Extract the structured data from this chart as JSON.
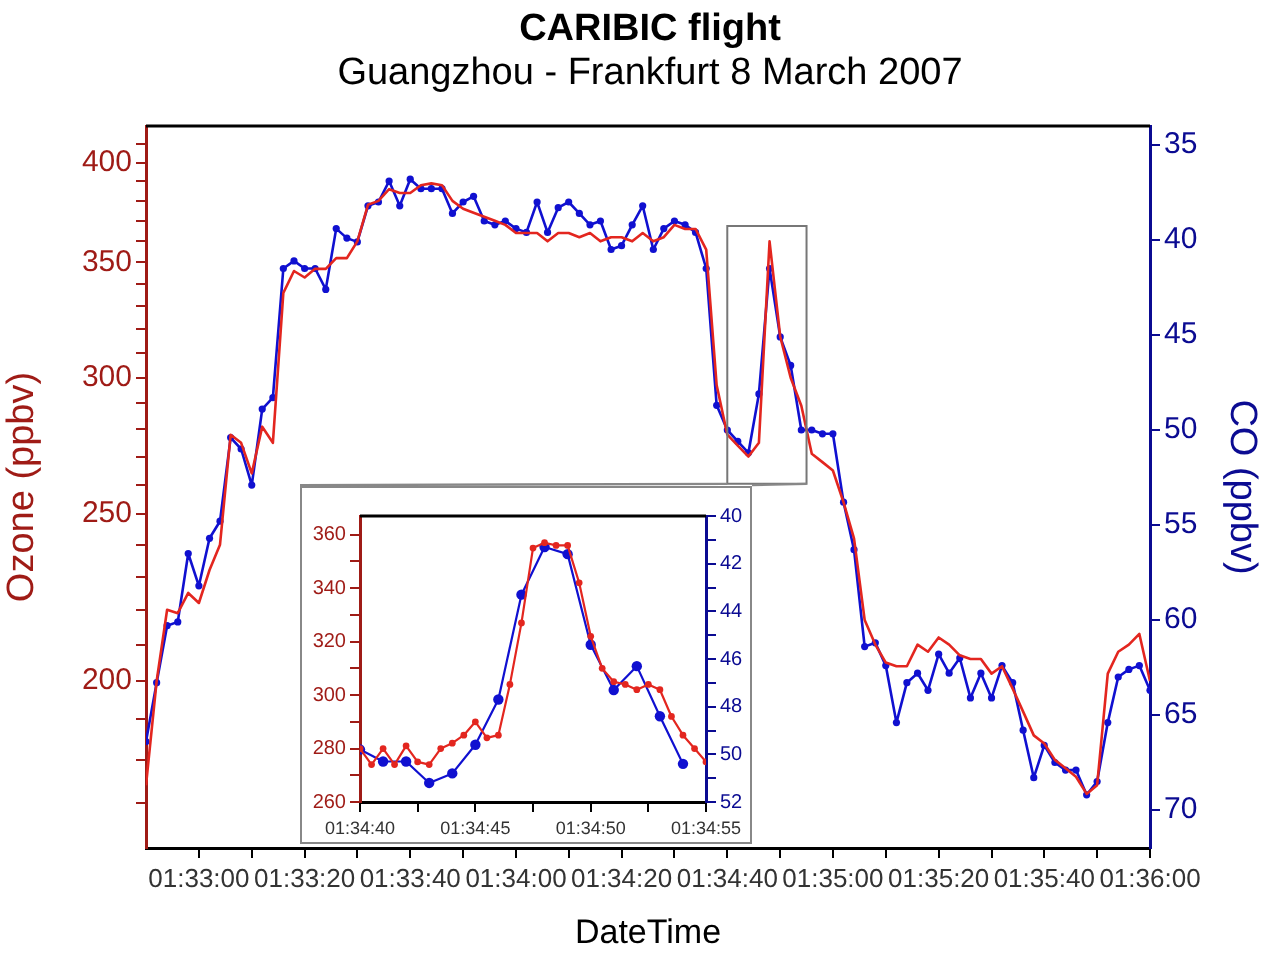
{
  "chart_data": [
    {
      "type": "line",
      "title": "CARIBIC flight",
      "subtitle": "Guangzhou - Frankfurt  8 March 2007",
      "xlabel": "DateTime",
      "ylabel": "Ozone (ppbv)",
      "y2label": "CO (ppbv)",
      "log": "y",
      "x": [
        1.54722,
        1.54778,
        1.54833,
        1.54889,
        1.54944,
        1.55,
        1.55056,
        1.55111,
        1.55167,
        1.55222,
        1.55278,
        1.55333,
        1.55389,
        1.55444,
        1.555,
        1.55556,
        1.55611,
        1.55667,
        1.55722,
        1.55778,
        1.55833,
        1.55889,
        1.55944,
        1.56,
        1.56056,
        1.56111,
        1.56167,
        1.56222,
        1.56278,
        1.56333,
        1.56389,
        1.56444,
        1.565,
        1.56556,
        1.56611,
        1.56667,
        1.56722,
        1.56778,
        1.56833,
        1.56889,
        1.56944,
        1.57,
        1.57056,
        1.57111,
        1.57167,
        1.57222,
        1.57278,
        1.57333,
        1.57389,
        1.57444,
        1.575,
        1.57556,
        1.57611,
        1.57667,
        1.57722,
        1.57778,
        1.57833,
        1.57889,
        1.57944,
        1.58,
        1.58056,
        1.58111,
        1.58167,
        1.58222,
        1.58278,
        1.58333,
        1.58389,
        1.58444,
        1.585,
        1.58556,
        1.58611,
        1.58667,
        1.58722,
        1.58778,
        1.58833,
        1.58889,
        1.58944,
        1.59,
        1.59056,
        1.59111,
        1.59167,
        1.59222,
        1.59278,
        1.59333,
        1.59389,
        1.59444,
        1.595,
        1.59556,
        1.59611,
        1.59667,
        1.59722,
        1.59778,
        1.59833,
        1.59889,
        1.59944,
        1.6
      ],
      "xlim": [
        1.54722,
        1.6
      ],
      "xticks": [
        {
          "value": 1.55,
          "label": "01:33:00"
        },
        {
          "value": 1.55278,
          "label": null
        },
        {
          "value": 1.55556,
          "label": "01:33:20"
        },
        {
          "value": 1.55833,
          "label": null
        },
        {
          "value": 1.56111,
          "label": "01:33:40"
        },
        {
          "value": 1.56389,
          "label": null
        },
        {
          "value": 1.56667,
          "label": "01:34:00"
        },
        {
          "value": 1.56944,
          "label": null
        },
        {
          "value": 1.57222,
          "label": "01:34:20"
        },
        {
          "value": 1.575,
          "label": null
        },
        {
          "value": 1.57778,
          "label": "01:34:40"
        },
        {
          "value": 1.58056,
          "label": null
        },
        {
          "value": 1.58333,
          "label": "01:35:00"
        },
        {
          "value": 1.58611,
          "label": null
        },
        {
          "value": 1.58889,
          "label": "01:35:20"
        },
        {
          "value": 1.59167,
          "label": null
        },
        {
          "value": 1.59444,
          "label": "01:35:40"
        },
        {
          "value": 1.59722,
          "label": null
        },
        {
          "value": 1.6,
          "label": "01:36:00"
        }
      ],
      "ylim": [
        160,
        420
      ],
      "yticks": [
        {
          "value": 170,
          "label": null
        },
        {
          "value": 180,
          "label": null
        },
        {
          "value": 190,
          "label": null
        },
        200,
        {
          "value": 210,
          "label": null
        },
        {
          "value": 220,
          "label": null
        },
        {
          "value": 230,
          "label": null
        },
        {
          "value": 240,
          "label": null
        },
        250,
        {
          "value": 260,
          "label": null
        },
        {
          "value": 270,
          "label": null
        },
        {
          "value": 280,
          "label": null
        },
        {
          "value": 290,
          "label": null
        },
        300,
        {
          "value": 310,
          "label": null
        },
        {
          "value": 320,
          "label": null
        },
        {
          "value": 330,
          "label": null
        },
        {
          "value": 340,
          "label": null
        },
        350,
        {
          "value": 360,
          "label": null
        },
        {
          "value": 370,
          "label": null
        },
        {
          "value": 380,
          "label": null
        },
        {
          "value": 390,
          "label": null
        },
        400,
        {
          "value": 410,
          "label": null
        }
      ],
      "y2lim": [
        72,
        34
      ],
      "y2ticks": [
        35,
        40,
        45,
        50,
        55,
        60,
        65,
        70
      ],
      "series": [
        {
          "color": "#e3261f",
          "marker": "none",
          "values": [
            174,
            200,
            220,
            219,
            225,
            222,
            232,
            240,
            278,
            275,
            264,
            281,
            275,
            336,
            346,
            343,
            347,
            347,
            352,
            352,
            360,
            378,
            380,
            386,
            384,
            384,
            388,
            389,
            388,
            380,
            376,
            374,
            372,
            370,
            368,
            364,
            364,
            364,
            360,
            364,
            364,
            362,
            364,
            360,
            362,
            362,
            360,
            364,
            360,
            362,
            368,
            366,
            366,
            356,
            297,
            278,
            274,
            270,
            275,
            360,
            317,
            300,
            289,
            271,
            268,
            265,
            254,
            242,
            217,
            210,
            205,
            204,
            204,
            210,
            208,
            212,
            210,
            207,
            206,
            206,
            202,
            204,
            198,
            192,
            186,
            184,
            180,
            178,
            176,
            172,
            174,
            202,
            208,
            210,
            213,
            200
          ]
        },
        {
          "color": "#1010d0",
          "marker": "circle",
          "axis": "y2",
          "values": [
            66.4,
            63.3,
            60.3,
            60.1,
            56.5,
            58.2,
            55.7,
            54.8,
            50.4,
            51.0,
            52.9,
            48.9,
            48.3,
            41.5,
            41.1,
            41.5,
            41.5,
            42.6,
            39.4,
            39.9,
            40.1,
            38.2,
            38.0,
            36.9,
            38.2,
            36.8,
            37.3,
            37.3,
            37.3,
            38.6,
            38.0,
            37.7,
            39.0,
            39.2,
            39.0,
            39.4,
            39.6,
            38.0,
            39.6,
            38.3,
            38.0,
            38.6,
            39.2,
            39.0,
            40.5,
            40.3,
            39.2,
            38.2,
            40.5,
            39.4,
            39.0,
            39.2,
            39.6,
            41.5,
            48.7,
            50.0,
            50.6,
            51.2,
            48.1,
            41.5,
            45.1,
            46.6,
            50.0,
            50.0,
            50.2,
            50.2,
            53.8,
            56.3,
            61.4,
            61.2,
            62.4,
            65.4,
            63.3,
            62.8,
            63.7,
            61.8,
            62.8,
            62.0,
            64.1,
            62.8,
            64.1,
            62.4,
            63.3,
            65.8,
            68.3,
            66.6,
            67.5,
            67.9,
            67.9,
            69.2,
            68.5,
            65.4,
            63.0,
            62.6,
            62.4,
            63.7
          ]
        }
      ]
    },
    {
      "type": "line",
      "xlim": [
        1.577778,
        1.581944
      ],
      "xticks": [
        {
          "value": 1.577778,
          "label": "01:34:40"
        },
        {
          "value": 1.578472,
          "label": null
        },
        {
          "value": 1.579167,
          "label": "01:34:45"
        },
        {
          "value": 1.579861,
          "label": null
        },
        {
          "value": 1.580556,
          "label": "01:34:50"
        },
        {
          "value": 1.58125,
          "label": null
        },
        {
          "value": 1.581944,
          "label": "01:34:55"
        }
      ],
      "ylim": [
        260,
        367
      ],
      "yticks": [
        260,
        {
          "value": 270,
          "label": null
        },
        280,
        {
          "value": 290,
          "label": null
        },
        300,
        {
          "value": 310,
          "label": null
        },
        320,
        {
          "value": 330,
          "label": null
        },
        340,
        {
          "value": 350,
          "label": null
        },
        360
      ],
      "y2lim": [
        52,
        40
      ],
      "y2ticks": [
        40,
        {
          "value": 41,
          "label": null
        },
        42,
        {
          "value": 43,
          "label": null
        },
        44,
        {
          "value": 45,
          "label": null
        },
        46,
        {
          "value": 47,
          "label": null
        },
        48,
        {
          "value": 49,
          "label": null
        },
        50,
        {
          "value": 51,
          "label": null
        },
        52
      ],
      "series": [
        {
          "color": "#e3261f",
          "marker": "circle",
          "x": [
            1.577778,
            1.577917,
            1.578056,
            1.578194,
            1.578333,
            1.578472,
            1.578611,
            1.57875,
            1.578889,
            1.579028,
            1.579167,
            1.579306,
            1.579444,
            1.579583,
            1.579722,
            1.579861,
            1.58,
            1.580139,
            1.580278,
            1.580417,
            1.580556,
            1.580694,
            1.580833,
            1.580972,
            1.581111,
            1.58125,
            1.581389,
            1.581528,
            1.581667,
            1.581806,
            1.581944
          ],
          "values": [
            280,
            274,
            280,
            274,
            281,
            275,
            274,
            280,
            282,
            285,
            290,
            284,
            285,
            304,
            327,
            355,
            357,
            356,
            356,
            342,
            322,
            310,
            305,
            304,
            302,
            304,
            302,
            292,
            285,
            280,
            275
          ]
        },
        {
          "color": "#1010d0",
          "marker": "circle",
          "axis": "y2",
          "x": [
            1.577778,
            1.578056,
            1.578333,
            1.578611,
            1.578889,
            1.579167,
            1.579444,
            1.579722,
            1.58,
            1.580278,
            1.580556,
            1.580833,
            1.581111,
            1.581389,
            1.581667
          ],
          "values": [
            49.8,
            50.3,
            50.3,
            51.2,
            50.8,
            49.6,
            47.7,
            43.3,
            41.3,
            41.6,
            45.4,
            47.3,
            46.3,
            48.4,
            50.4
          ]
        }
      ]
    }
  ]
}
